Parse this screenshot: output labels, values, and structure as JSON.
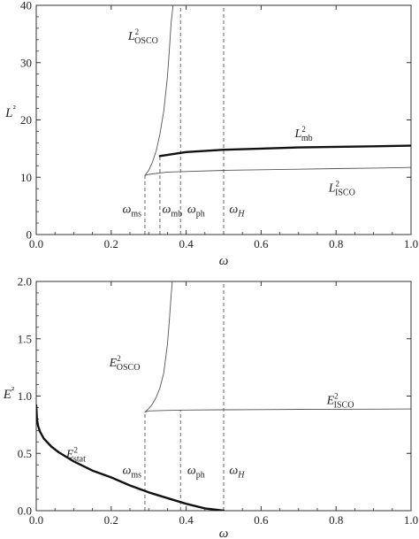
{
  "chart_data": [
    {
      "type": "line",
      "xlabel": "ω",
      "ylabel": "L²",
      "xlim": [
        0,
        1.0
      ],
      "ylim": [
        0,
        40
      ],
      "xticks": [
        "0.0",
        "0.2",
        "0.4",
        "0.6",
        "0.8",
        "1.0"
      ],
      "yticks": [
        "0",
        "10",
        "20",
        "30",
        "40"
      ],
      "grid": false,
      "series": [
        {
          "name": "L²_OSCO",
          "weight": "thin",
          "x": [
            0.29,
            0.3,
            0.31,
            0.32,
            0.33,
            0.34,
            0.35,
            0.355,
            0.36,
            0.365
          ],
          "y": [
            10.3,
            11.2,
            12.6,
            14.6,
            17.5,
            21.5,
            27.5,
            32.0,
            37.0,
            40.0
          ]
        },
        {
          "name": "L²_mb",
          "weight": "thick",
          "x": [
            0.33,
            0.4,
            0.5,
            0.6,
            0.7,
            0.8,
            0.9,
            1.0
          ],
          "y": [
            13.7,
            14.4,
            14.8,
            15.0,
            15.2,
            15.3,
            15.4,
            15.5
          ]
        },
        {
          "name": "L²_ISCO",
          "weight": "thin",
          "x": [
            0.29,
            0.3,
            0.35,
            0.4,
            0.5,
            0.6,
            0.7,
            0.8,
            0.9,
            1.0
          ],
          "y": [
            10.3,
            10.5,
            10.9,
            11.0,
            11.2,
            11.3,
            11.4,
            11.5,
            11.6,
            11.7
          ]
        }
      ],
      "vlines": [
        {
          "x": 0.29,
          "ymax": 10.3
        },
        {
          "x": 0.33,
          "ymax": 13.7
        },
        {
          "x": 0.385,
          "ymax": 40
        },
        {
          "x": 0.5,
          "ymax": 40
        }
      ],
      "annotations": [
        {
          "sym": "L",
          "sup": "2",
          "sub": "OSCO",
          "x": 0.245,
          "y": 34.0
        },
        {
          "sym": "L",
          "sup": "2",
          "sub": "mb",
          "x": 0.69,
          "y": 17.0
        },
        {
          "sym": "L",
          "sup": "2",
          "sub": "ISCO",
          "x": 0.78,
          "y": 7.5
        },
        {
          "sym": "ω",
          "sub": "ms",
          "x": 0.23,
          "y": 3.8
        },
        {
          "sym": "ω",
          "sub": "mb",
          "x": 0.336,
          "y": 3.8
        },
        {
          "sym": "ω",
          "sub": "ph",
          "x": 0.403,
          "y": 3.8
        },
        {
          "sym": "ω",
          "subit": "H",
          "x": 0.515,
          "y": 3.8
        }
      ]
    },
    {
      "type": "line",
      "xlabel": "ω",
      "ylabel": "E²",
      "xlim": [
        0,
        1.0
      ],
      "ylim": [
        0,
        2.0
      ],
      "xticks": [
        "0.0",
        "0.2",
        "0.4",
        "0.6",
        "0.8",
        "1.0"
      ],
      "yticks": [
        "0.0",
        "0.5",
        "1.0",
        "1.5",
        "2.0"
      ],
      "grid": false,
      "series": [
        {
          "name": "E²_OSCO",
          "weight": "thin",
          "x": [
            0.29,
            0.3,
            0.31,
            0.32,
            0.33,
            0.34,
            0.35,
            0.355,
            0.36,
            0.363
          ],
          "y": [
            0.86,
            0.89,
            0.93,
            0.99,
            1.07,
            1.2,
            1.45,
            1.65,
            1.88,
            2.0
          ]
        },
        {
          "name": "E²_ISCO",
          "weight": "thin",
          "x": [
            0.29,
            0.3,
            0.35,
            0.4,
            0.5,
            0.6,
            0.7,
            0.8,
            0.9,
            1.0
          ],
          "y": [
            0.86,
            0.87,
            0.875,
            0.878,
            0.88,
            0.882,
            0.884,
            0.885,
            0.886,
            0.887
          ]
        },
        {
          "name": "E²_stat",
          "weight": "thick",
          "x": [
            0.0,
            0.002,
            0.005,
            0.01,
            0.02,
            0.04,
            0.06,
            0.08,
            0.1,
            0.15,
            0.2,
            0.25,
            0.3,
            0.35,
            0.4,
            0.45,
            0.5
          ],
          "y": [
            0.92,
            0.8,
            0.74,
            0.69,
            0.63,
            0.56,
            0.51,
            0.47,
            0.43,
            0.35,
            0.29,
            0.22,
            0.16,
            0.11,
            0.06,
            0.02,
            0.0
          ]
        }
      ],
      "vlines": [
        {
          "x": 0.29,
          "ymax": 0.86
        },
        {
          "x": 0.385,
          "ymax": 0.878
        },
        {
          "x": 0.5,
          "ymax": 2.0
        }
      ],
      "annotations": [
        {
          "sym": "E",
          "sup": "2",
          "sub": "OSCO",
          "x": 0.195,
          "y": 1.26
        },
        {
          "sym": "E",
          "sup": "2",
          "sub": "ISCO",
          "x": 0.775,
          "y": 0.93
        },
        {
          "sym": "E",
          "sup": "2",
          "sub": "stat",
          "x": 0.08,
          "y": 0.46
        },
        {
          "sym": "ω",
          "sub": "ms",
          "x": 0.23,
          "y": 0.32
        },
        {
          "sym": "ω",
          "sub": "ph",
          "x": 0.403,
          "y": 0.32
        },
        {
          "sym": "ω",
          "subit": "H",
          "x": 0.515,
          "y": 0.32
        }
      ]
    }
  ]
}
